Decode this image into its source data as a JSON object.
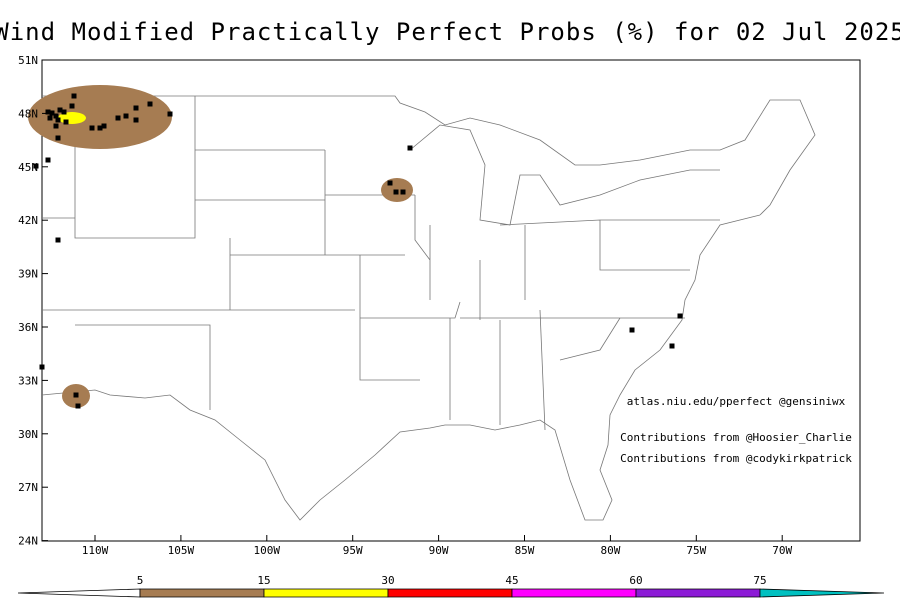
{
  "title": "Wind Modified Practically Perfect Probs (%) for 02 Jul 2025",
  "lat_labels": [
    "51N",
    "48N",
    "45N",
    "42N",
    "39N",
    "36N",
    "33N",
    "30N",
    "27N",
    "24N"
  ],
  "lon_labels": [
    "110W",
    "105W",
    "100W",
    "95W",
    "90W",
    "85W",
    "80W",
    "75W",
    "70W"
  ],
  "credits": [
    "atlas.niu.edu/pperfect @gensiniwx",
    "Contributions from @Hoosier_Charlie",
    "Contributions from @codykirkpatrick"
  ],
  "colorbar": {
    "labels": [
      "5",
      "15",
      "30",
      "45",
      "60",
      "75"
    ],
    "colors": [
      "#ffffff",
      "#a67c52",
      "#ffff00",
      "#ff0000",
      "#ff00ff",
      "#8c1ad6",
      "#00c0c0"
    ]
  }
}
